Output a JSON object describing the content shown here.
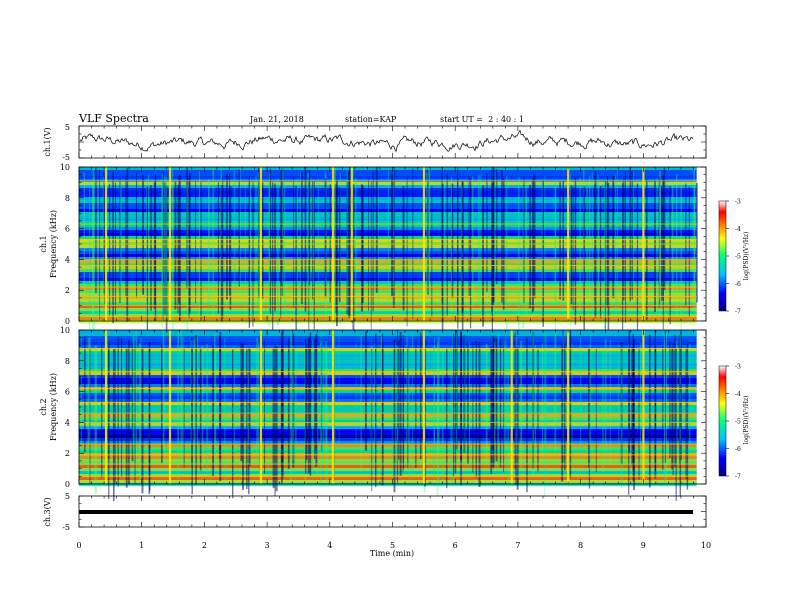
{
  "header": {
    "title": "VLF Spectra",
    "date": "Jan. 21, 2018",
    "station": "station=KAP",
    "start": "start UT =  2 : 40 : 1"
  },
  "chart_data": [
    {
      "type": "line",
      "name": "ch1-waveform",
      "ylabel": "ch.1(V)",
      "ylim": [
        -5,
        5
      ],
      "yticks": [
        "5",
        "-5"
      ],
      "xlim": [
        0,
        10
      ],
      "note": "noisy waveform oscillating around 0 V"
    },
    {
      "type": "heatmap",
      "name": "ch1-spectrogram",
      "ylabel": "ch.1",
      "ylabel2": "Frequency (kHz)",
      "ylim": [
        0,
        10
      ],
      "yticks": [
        "0",
        "2",
        "4",
        "6",
        "8",
        "10"
      ],
      "xlim": [
        0,
        9.85
      ],
      "colorbar": {
        "label": "log(PSD)(V²/Hz)",
        "range": [
          -7,
          -3
        ],
        "ticks": [
          "-3",
          "-4",
          "-5",
          "-6",
          "-7"
        ]
      },
      "bright_bands_khz": [
        0.3,
        1.0,
        1.6,
        2.2,
        3.6,
        4.0,
        5.0,
        5.3,
        6.3,
        9.1
      ],
      "dark_bands_khz": [
        3.0,
        4.5,
        6.0,
        7.5,
        8.5,
        9.5
      ],
      "impulse_times_min": [
        0.43,
        1.45,
        2.9,
        4.05,
        4.35,
        5.5,
        7.8,
        9.0
      ]
    },
    {
      "type": "heatmap",
      "name": "ch2-spectrogram",
      "ylabel": "ch.2",
      "ylabel2": "Frequency (kHz)",
      "ylim": [
        0,
        10
      ],
      "yticks": [
        "0",
        "2",
        "4",
        "6",
        "8",
        "10"
      ],
      "xlim": [
        0,
        9.85
      ],
      "colorbar": {
        "label": "log(PSD)(V²/Hz)",
        "range": [
          -7,
          -3
        ],
        "ticks": [
          "-3",
          "-4",
          "-5",
          "-6",
          "-7"
        ]
      },
      "bright_bands_khz": [
        0.5,
        1.3,
        1.9,
        2.6,
        4.0,
        4.6,
        5.3,
        6.2,
        7.3,
        8.8
      ],
      "dark_bands_khz": [
        3.0,
        3.5,
        5.8,
        6.8,
        9.3
      ],
      "impulse_times_min": [
        0.43,
        1.45,
        2.9,
        4.05,
        5.5,
        6.9,
        7.8,
        9.0
      ]
    },
    {
      "type": "line",
      "name": "ch3-waveform",
      "ylabel": "ch.3(V)",
      "ylim": [
        -5,
        5
      ],
      "yticks": [
        "5",
        "-5"
      ],
      "xlim": [
        0,
        10
      ],
      "note": "thick flat line near -1.5 V"
    }
  ],
  "xaxis": {
    "label": "Time (min)",
    "ticks": [
      "0",
      "1",
      "2",
      "3",
      "4",
      "5",
      "6",
      "7",
      "8",
      "9",
      "10"
    ],
    "range": [
      0,
      10
    ]
  },
  "colors": {
    "scale": [
      "#00008b",
      "#0000ff",
      "#00bfff",
      "#00ff80",
      "#ffff00",
      "#ff8000",
      "#ff0000",
      "#ffffff"
    ]
  }
}
